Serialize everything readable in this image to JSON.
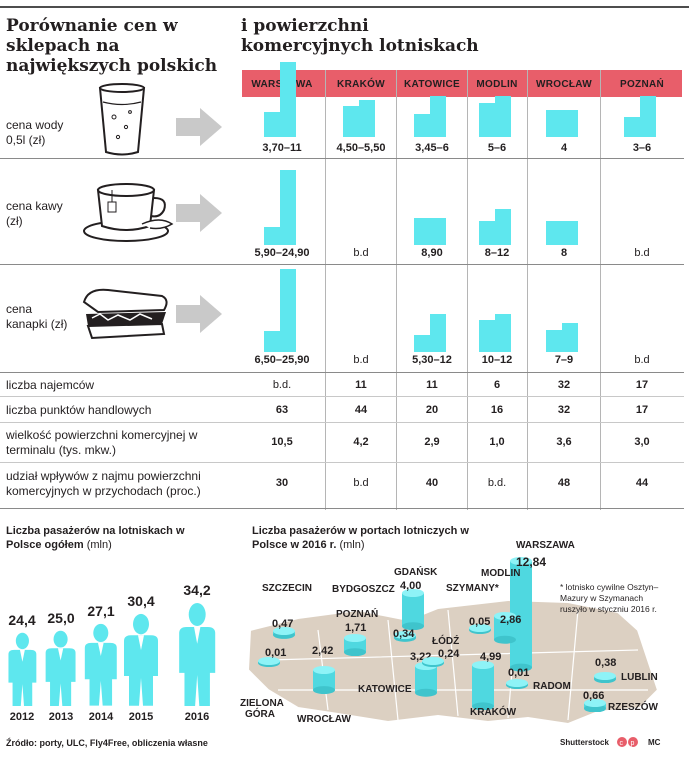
{
  "title_left": "Porównanie cen w sklepach na największych polskich",
  "title_right": "i powierzchni komercyjnych lotniskach",
  "airports": [
    "WARSZAWA",
    "KRAKÓW",
    "KATOWICE",
    "MODLIN",
    "WROCŁAW",
    "POZNAŃ"
  ],
  "price_rows": [
    {
      "label": "cena wody 0,5l (zł)",
      "values": [
        "3,70–11",
        "4,50–5,50",
        "3,45–6",
        "5–6",
        "4",
        "3–6"
      ]
    },
    {
      "label": "cena kawy (zł)",
      "values": [
        "5,90–24,90",
        "b.d",
        "8,90",
        "8–12",
        "8",
        "b.d"
      ]
    },
    {
      "label": "cena kanapki (zł)",
      "values": [
        "6,50–25,90",
        "b.d",
        "5,30–12",
        "10–12",
        "7–9",
        "b.d"
      ]
    }
  ],
  "stat_rows": [
    {
      "label": "liczba najemców",
      "values": [
        "b.d.",
        "11",
        "11",
        "6",
        "32",
        "17"
      ]
    },
    {
      "label": "liczba punktów handlowych",
      "values": [
        "63",
        "44",
        "20",
        "16",
        "32",
        "17"
      ]
    },
    {
      "label": "wielkość powierzchni komercyjnej w terminalu (tys. mkw.)",
      "values": [
        "10,5",
        "4,2",
        "2,9",
        "1,0",
        "3,6",
        "3,0"
      ]
    },
    {
      "label": "udział wpływów z najmu powierzchni komercyjnych w przychodach (proc.)",
      "values": [
        "30",
        "b.d",
        "40",
        "b.d.",
        "48",
        "44"
      ]
    }
  ],
  "passengers_title": "Liczba pasażerów na lotniskach w Polsce ogółem",
  "passengers_unit": "(mln)",
  "ports_title": "Liczba pasażerów w portach lotniczych w Polsce w 2016 r.",
  "ports_unit": "(mln)",
  "footnote": "* lotnisko cywilne Osztyn–Mazury w Szymanach ruszyło w styczniu 2016 r.",
  "source": "Źródło: porty, ULC, Fly4Free, obliczenia własne",
  "credit": "Shutterstock",
  "credit2": "MC",
  "chart_data": [
    {
      "type": "bar",
      "categories": [
        "WARSZAWA",
        "KRAKÓW",
        "KATOWICE",
        "MODLIN",
        "WROCŁAW",
        "POZNAŃ"
      ],
      "series": [
        {
          "name": "cena wody 0,5l (zł)",
          "min": [
            3.7,
            4.5,
            3.45,
            5,
            4,
            3
          ],
          "max": [
            11,
            5.5,
            6,
            6,
            4,
            6
          ]
        },
        {
          "name": "cena kawy (zł)",
          "min": [
            5.9,
            null,
            8.9,
            8,
            8,
            null
          ],
          "max": [
            24.9,
            null,
            8.9,
            12,
            8,
            null
          ]
        },
        {
          "name": "cena kanapki (zł)",
          "min": [
            6.5,
            null,
            5.3,
            10,
            7,
            null
          ],
          "max": [
            25.9,
            null,
            12,
            12,
            9,
            null
          ]
        }
      ]
    },
    {
      "type": "bar",
      "title": "Liczba pasażerów na lotniskach w Polsce ogółem",
      "categories": [
        "2012",
        "2013",
        "2014",
        "2015",
        "2016"
      ],
      "labels": [
        "24,4",
        "25,0",
        "27,1",
        "30,4",
        "34,2"
      ],
      "values": [
        24.4,
        25.0,
        27.1,
        30.4,
        34.2
      ]
    },
    {
      "type": "bar",
      "title": "Liczba pasażerów w portach lotniczych w Polsce w 2016 r.",
      "categories": [
        "WARSZAWA",
        "KRAKÓW",
        "GDAŃSK",
        "KATOWICE",
        "WROCŁAW",
        "MODLIN",
        "POZNAŃ",
        "SZCZECIN",
        "RZESZÓW",
        "LUBLIN",
        "BYDGOSZCZ",
        "ŁÓDŹ",
        "SZYMANY*",
        "ZIELONA GÓRA",
        "RADOM"
      ],
      "labels": [
        "12,84",
        "4,99",
        "4,00",
        "3,22",
        "2,42",
        "2,86",
        "1,71",
        "0,47",
        "0,66",
        "0,38",
        "0,34",
        "0,24",
        "0,05",
        "0,01",
        "0,01"
      ],
      "values": [
        12.84,
        4.99,
        4.0,
        3.22,
        2.42,
        2.86,
        1.71,
        0.47,
        0.66,
        0.38,
        0.34,
        0.24,
        0.05,
        0.01,
        0.01
      ]
    }
  ]
}
